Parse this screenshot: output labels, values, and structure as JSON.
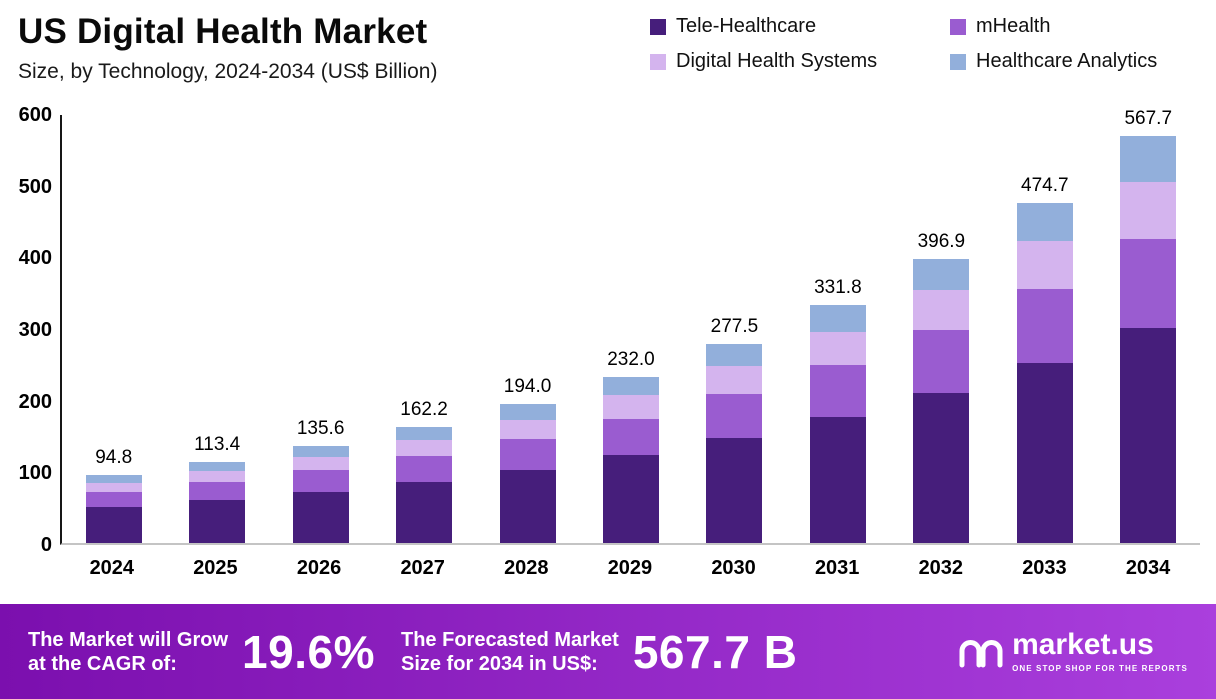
{
  "header": {
    "title": "US Digital Health Market",
    "subtitle": "Size, by Technology, 2024-2034 (US$ Billion)"
  },
  "chart_data": {
    "type": "bar",
    "stacked": true,
    "title": "US Digital Health Market Size, by Technology, 2024-2034 (US$ Billion)",
    "xlabel": "",
    "ylabel": "",
    "ylim": [
      0,
      600
    ],
    "yticks": [
      0,
      100,
      200,
      300,
      400,
      500,
      600
    ],
    "grid": false,
    "legend_position": "top-right",
    "categories": [
      "2024",
      "2025",
      "2026",
      "2027",
      "2028",
      "2029",
      "2030",
      "2031",
      "2032",
      "2033",
      "2034"
    ],
    "totals": [
      94.8,
      113.4,
      135.6,
      162.2,
      194.0,
      232.0,
      277.5,
      331.8,
      396.9,
      474.7,
      567.7
    ],
    "series": [
      {
        "name": "Tele-Healthcare",
        "color": "#461e7b",
        "values": [
          50.0,
          59.9,
          71.6,
          85.6,
          102.4,
          122.5,
          146.5,
          175.2,
          209.6,
          250.6,
          299.7
        ]
      },
      {
        "name": "mHealth",
        "color": "#9a5cd0",
        "values": [
          20.9,
          24.9,
          29.8,
          35.7,
          42.7,
          51.0,
          61.1,
          73.0,
          87.3,
          104.4,
          124.9
        ]
      },
      {
        "name": "Digital Health Systems",
        "color": "#d4b4ee",
        "values": [
          13.3,
          15.9,
          19.0,
          22.7,
          27.2,
          32.5,
          38.9,
          46.5,
          55.6,
          66.5,
          79.5
        ]
      },
      {
        "name": "Healthcare Analytics",
        "color": "#92afdb",
        "values": [
          10.6,
          12.7,
          15.2,
          18.2,
          21.7,
          26.0,
          31.0,
          37.1,
          44.4,
          53.2,
          63.6
        ]
      }
    ]
  },
  "footer": {
    "cagr_label_line1": "The Market will Grow",
    "cagr_label_line2": "at the CAGR of:",
    "cagr_value": "19.6%",
    "forecast_label_line1": "The Forecasted Market",
    "forecast_label_line2": "Size for 2034 in US$:",
    "forecast_value": "567.7 B",
    "brand_name": "market.us",
    "brand_tagline": "ONE STOP SHOP FOR THE REPORTS"
  },
  "colors": {
    "footer_gradient_left": "#7b0fae",
    "footer_gradient_right": "#aa3fdd",
    "axis_line": "#161616",
    "baseline": "#c4c4c4",
    "text": "#000000"
  }
}
